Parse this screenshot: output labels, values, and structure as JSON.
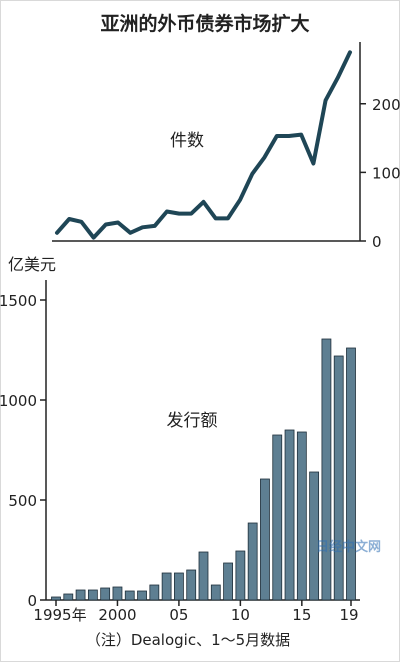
{
  "title": "亚洲的外币债券市场扩大",
  "note": "（注）Dealogic、1～5月数据",
  "watermark": "日经中文网",
  "colors": {
    "line": "#1f4656",
    "bar": "#5e7f92",
    "bar_edge": "#1f2f3a",
    "axis": "#222222"
  },
  "chart_data": [
    {
      "type": "line",
      "annotation": "件数",
      "x": [
        1995,
        1996,
        1997,
        1998,
        1999,
        2000,
        2001,
        2002,
        2003,
        2004,
        2005,
        2006,
        2007,
        2008,
        2009,
        2010,
        2011,
        2012,
        2013,
        2014,
        2015,
        2016,
        2017,
        2018,
        2019
      ],
      "series": [
        {
          "values": [
            12,
            32,
            28,
            5,
            24,
            27,
            12,
            20,
            22,
            43,
            40,
            40,
            57,
            33,
            33,
            60,
            98,
            122,
            153,
            153,
            155,
            113,
            205,
            238,
            275
          ]
        }
      ],
      "ylim": [
        0,
        290
      ],
      "yticks": [
        0,
        100,
        200
      ],
      "ytick_labels": [
        "0",
        "100",
        "200"
      ],
      "yaxis_side": "right",
      "xlabel": "",
      "ylabel": ""
    },
    {
      "type": "bar",
      "annotation": "发行额",
      "unit_label": "亿美元",
      "x": [
        1995,
        1996,
        1997,
        1998,
        1999,
        2000,
        2001,
        2002,
        2003,
        2004,
        2005,
        2006,
        2007,
        2008,
        2009,
        2010,
        2011,
        2012,
        2013,
        2014,
        2015,
        2016,
        2017,
        2018,
        2019
      ],
      "values": [
        15,
        30,
        50,
        50,
        60,
        65,
        45,
        45,
        75,
        135,
        135,
        150,
        240,
        75,
        185,
        245,
        385,
        605,
        825,
        850,
        840,
        640,
        1305,
        1220,
        1260
      ],
      "ylim": [
        0,
        1600
      ],
      "yticks": [
        0,
        500,
        1000,
        1500
      ],
      "ytick_labels": [
        "0",
        "500",
        "1000",
        "1500"
      ],
      "xtick_values": [
        1995,
        2000,
        2005,
        2010,
        2015,
        2019
      ],
      "xtick_labels": [
        "1995年",
        "2000",
        "05",
        "10",
        "15",
        "19"
      ],
      "xlabel": "",
      "ylabel": ""
    }
  ]
}
